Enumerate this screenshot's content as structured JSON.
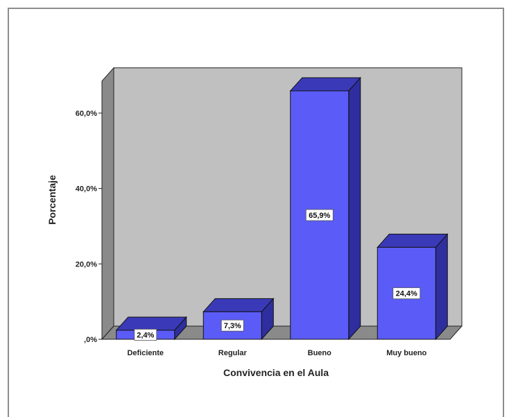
{
  "chart_data": {
    "type": "bar",
    "title": "",
    "xlabel": "Convivencia en el Aula",
    "ylabel": "Porcentaje",
    "categories": [
      "Deficiente",
      "Regular",
      "Bueno",
      "Muy bueno"
    ],
    "values": [
      2.4,
      7.3,
      65.9,
      24.4
    ],
    "data_labels": [
      "2,4%",
      "7,3%",
      "65,9%",
      "24,4%"
    ],
    "y_ticks": [
      0,
      20,
      40,
      60
    ],
    "y_tick_labels": [
      ",0%",
      "20,0%",
      "40,0%",
      "60,0%"
    ],
    "ylim": [
      0,
      72
    ],
    "grid": false,
    "legend": "none",
    "colors": {
      "bar_front": "#5b5bf7",
      "bar_top": "#3a3ab8",
      "bar_side": "#2e2e9e",
      "back_wall": "#c0c0c0",
      "side_wall": "#8a8a8a",
      "floor": "#8a8a8a"
    }
  }
}
